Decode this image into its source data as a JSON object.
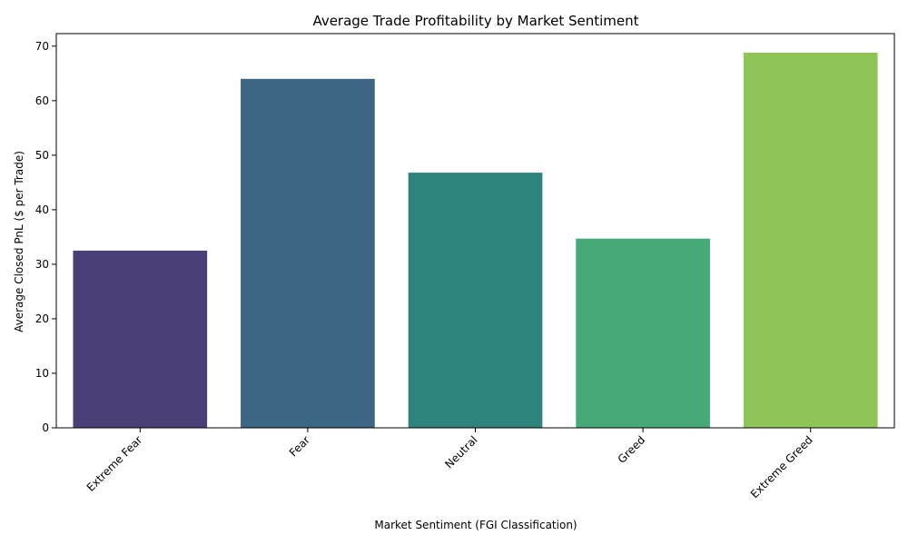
{
  "chart_data": {
    "type": "bar",
    "title": "Average Trade Profitability by Market Sentiment",
    "xlabel": "Market Sentiment (FGI Classification)",
    "ylabel": "Average Closed PnL ($ per Trade)",
    "categories": [
      "Extreme Fear",
      "Fear",
      "Neutral",
      "Greed",
      "Extreme Greed"
    ],
    "values": [
      32.5,
      64.0,
      46.8,
      34.7,
      68.8
    ],
    "colors": [
      "#4a3f77",
      "#3d6584",
      "#2e837c",
      "#47a978",
      "#8ec556"
    ],
    "ylim": [
      0,
      72.3
    ],
    "yticks": [
      0,
      10,
      20,
      30,
      40,
      50,
      60,
      70
    ],
    "grid": false,
    "legend": "none"
  }
}
